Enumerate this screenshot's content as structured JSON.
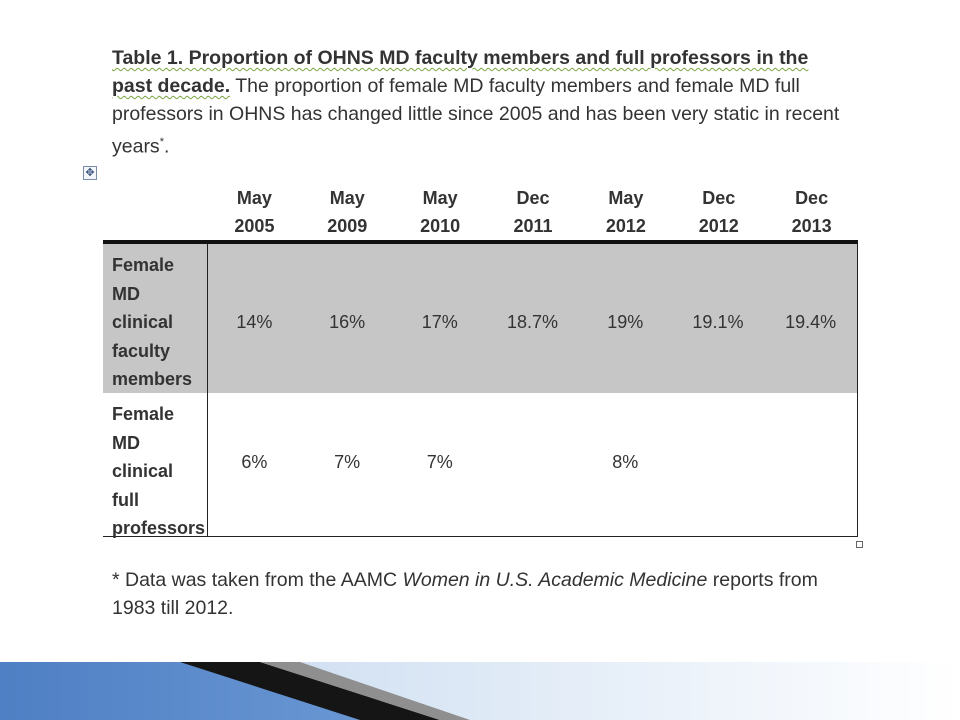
{
  "heading": {
    "title": "Table 1. Proportion of OHNS MD faculty members and full professors in the past decade.",
    "text": " The proportion of female MD faculty members and female MD full professors in OHNS has changed little since 2005 and has been very static in recent years",
    "asterisk": "*",
    "end": "."
  },
  "table": {
    "columns": [
      [
        "May",
        "2005"
      ],
      [
        "May",
        "2009"
      ],
      [
        "May",
        "2010"
      ],
      [
        "Dec",
        "2011"
      ],
      [
        "May",
        "2012"
      ],
      [
        "Dec",
        "2012"
      ],
      [
        "Dec",
        "2013"
      ]
    ],
    "rows": [
      {
        "label_lines": [
          "Female",
          "MD",
          "clinical",
          "faculty",
          "members"
        ],
        "values": [
          "14%",
          "16%",
          "17%",
          "18.7%",
          "19%",
          "19.1%",
          "19.4%"
        ],
        "shaded": true
      },
      {
        "label_lines": [
          "Female",
          "MD",
          "clinical",
          "full",
          "professors"
        ],
        "values": [
          "6%",
          "7%",
          "7%",
          "",
          "8%",
          "",
          ""
        ],
        "shaded": false
      }
    ],
    "shade_color": "#c6c6c6"
  },
  "footnote": {
    "prefix": "* Data was taken from the AAMC ",
    "italic": "Women in U.S. Academic Medicine",
    "suffix": " reports from 1983 till 2012."
  },
  "icons": {
    "move_handle": "move-cross-icon",
    "resize_handle": "resize-square-icon"
  }
}
